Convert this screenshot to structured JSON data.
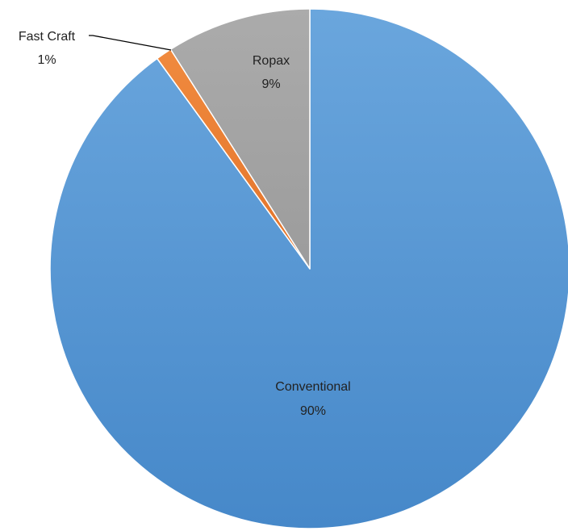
{
  "chart_data": {
    "type": "pie",
    "slices": [
      {
        "label": "Conventional",
        "value": 90,
        "value_label": "90%",
        "color": "#5b9bd5"
      },
      {
        "label": "Fast Craft",
        "value": 1,
        "value_label": "1%",
        "color": "#ed7d31"
      },
      {
        "label": "Ropax",
        "value": 9,
        "value_label": "9%",
        "color": "#a5a5a5"
      }
    ],
    "start": "12 o'clock",
    "direction": "clockwise",
    "legend": "none"
  }
}
